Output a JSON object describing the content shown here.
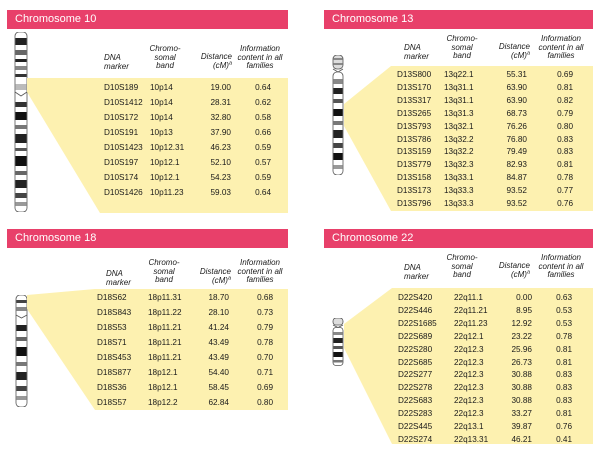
{
  "panels": [
    {
      "title": "Chromosome 10",
      "headers": {
        "marker": "DNA marker",
        "band": "Chromo-somal band",
        "distance": "Distance (cM)",
        "distance_sup": "a",
        "info": "Information content in all families"
      },
      "rows": [
        {
          "marker": "D10S189",
          "band": "10p14",
          "distance": "19.00",
          "info": "0.64"
        },
        {
          "marker": "D10S1412",
          "band": "10p14",
          "distance": "28.31",
          "info": "0.62"
        },
        {
          "marker": "D10S172",
          "band": "10p14",
          "distance": "32.80",
          "info": "0.58"
        },
        {
          "marker": "D10S191",
          "band": "10p13",
          "distance": "37.90",
          "info": "0.66"
        },
        {
          "marker": "D10S1423",
          "band": "10p12.31",
          "distance": "46.23",
          "info": "0.59"
        },
        {
          "marker": "D10S197",
          "band": "10p12.1",
          "distance": "52.10",
          "info": "0.57"
        },
        {
          "marker": "D10S174",
          "band": "10p12.1",
          "distance": "54.23",
          "info": "0.59"
        },
        {
          "marker": "D10S1426",
          "band": "10p11.23",
          "distance": "59.03",
          "info": "0.64"
        }
      ]
    },
    {
      "title": "Chromosome 13",
      "headers": {
        "marker": "DNA marker",
        "band": "Chromo-somal band",
        "distance": "Distance (cM)",
        "distance_sup": "a",
        "info": "Information content in all families"
      },
      "rows": [
        {
          "marker": "D13S800",
          "band": "13q22.1",
          "distance": "55.31",
          "info": "0.69"
        },
        {
          "marker": "D13S170",
          "band": "13q31.1",
          "distance": "63.90",
          "info": "0.81"
        },
        {
          "marker": "D13S317",
          "band": "13q31.1",
          "distance": "63.90",
          "info": "0.82"
        },
        {
          "marker": "D13S265",
          "band": "13q31.3",
          "distance": "68.73",
          "info": "0.79"
        },
        {
          "marker": "D13S793",
          "band": "13q32.1",
          "distance": "76.26",
          "info": "0.80"
        },
        {
          "marker": "D13S786",
          "band": "13q32.2",
          "distance": "76.80",
          "info": "0.83"
        },
        {
          "marker": "D13S159",
          "band": "13q32.2",
          "distance": "79.49",
          "info": "0.83"
        },
        {
          "marker": "D13S779",
          "band": "13q32.3",
          "distance": "82.93",
          "info": "0.81"
        },
        {
          "marker": "D13S158",
          "band": "13q33.1",
          "distance": "84.87",
          "info": "0.78"
        },
        {
          "marker": "D13S173",
          "band": "13q33.3",
          "distance": "93.52",
          "info": "0.77"
        },
        {
          "marker": "D13S796",
          "band": "13q33.3",
          "distance": "93.52",
          "info": "0.76"
        }
      ]
    },
    {
      "title": "Chromosome 18",
      "headers": {
        "marker": "DNA marker",
        "band": "Chromo-somal band",
        "distance": "Distance (cM)",
        "distance_sup": "a",
        "info": "Information content in all families"
      },
      "rows": [
        {
          "marker": "D18S62",
          "band": "18p11.31",
          "distance": "18.70",
          "info": "0.68"
        },
        {
          "marker": "D18S843",
          "band": "18p11.22",
          "distance": "28.10",
          "info": "0.73"
        },
        {
          "marker": "D18S53",
          "band": "18p11.21",
          "distance": "41.24",
          "info": "0.79"
        },
        {
          "marker": "D18S71",
          "band": "18p11.21",
          "distance": "43.49",
          "info": "0.78"
        },
        {
          "marker": "D18S453",
          "band": "18p11.21",
          "distance": "43.49",
          "info": "0.70"
        },
        {
          "marker": "D18S877",
          "band": "18p12.1",
          "distance": "54.40",
          "info": "0.71"
        },
        {
          "marker": "D18S36",
          "band": "18p12.1",
          "distance": "58.45",
          "info": "0.69"
        },
        {
          "marker": "D18S57",
          "band": "18p12.2",
          "distance": "62.84",
          "info": "0.80"
        }
      ]
    },
    {
      "title": "Chromosome 22",
      "headers": {
        "marker": "DNA marker",
        "band": "Chromo-somal band",
        "distance": "Distance (cM)",
        "distance_sup": "a",
        "info": "Information content in all families"
      },
      "rows": [
        {
          "marker": "D22S420",
          "band": "22q11.1",
          "distance": "0.00",
          "info": "0.63"
        },
        {
          "marker": "D22S446",
          "band": "22q11.21",
          "distance": "8.95",
          "info": "0.53"
        },
        {
          "marker": "D22S1685",
          "band": "22q11.23",
          "distance": "12.92",
          "info": "0.53"
        },
        {
          "marker": "D22S689",
          "band": "22q12.1",
          "distance": "23.22",
          "info": "0.78"
        },
        {
          "marker": "D22S280",
          "band": "22q12.3",
          "distance": "25.96",
          "info": "0.81"
        },
        {
          "marker": "D22S685",
          "band": "22q12.3",
          "distance": "26.73",
          "info": "0.81"
        },
        {
          "marker": "D22S277",
          "band": "22q12.3",
          "distance": "30.88",
          "info": "0.83"
        },
        {
          "marker": "D22S278",
          "band": "22q12.3",
          "distance": "30.88",
          "info": "0.83"
        },
        {
          "marker": "D22S683",
          "band": "22q12.3",
          "distance": "30.88",
          "info": "0.83"
        },
        {
          "marker": "D22S283",
          "band": "22q12.3",
          "distance": "33.27",
          "info": "0.81"
        },
        {
          "marker": "D22S445",
          "band": "22q13.1",
          "distance": "39.87",
          "info": "0.76"
        },
        {
          "marker": "D22S274",
          "band": "22q13.31",
          "distance": "46.21",
          "info": "0.41"
        }
      ]
    }
  ],
  "colors": {
    "header": "#e8406a",
    "highlight": "#fdf1b0"
  }
}
